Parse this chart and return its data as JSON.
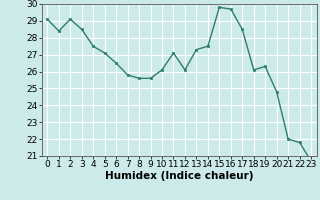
{
  "x": [
    0,
    1,
    2,
    3,
    4,
    5,
    6,
    7,
    8,
    9,
    10,
    11,
    12,
    13,
    14,
    15,
    16,
    17,
    18,
    19,
    20,
    21,
    22,
    23
  ],
  "y": [
    29.1,
    28.4,
    29.1,
    28.5,
    27.5,
    27.1,
    26.5,
    25.8,
    25.6,
    25.6,
    26.1,
    27.1,
    26.1,
    27.3,
    27.5,
    29.8,
    29.7,
    28.5,
    26.1,
    26.3,
    24.8,
    22.0,
    21.8,
    20.7
  ],
  "xlabel": "Humidex (Indice chaleur)",
  "ylim": [
    21,
    30
  ],
  "xlim": [
    -0.5,
    23.5
  ],
  "yticks": [
    21,
    22,
    23,
    24,
    25,
    26,
    27,
    28,
    29,
    30
  ],
  "xticks": [
    0,
    1,
    2,
    3,
    4,
    5,
    6,
    7,
    8,
    9,
    10,
    11,
    12,
    13,
    14,
    15,
    16,
    17,
    18,
    19,
    20,
    21,
    22,
    23
  ],
  "line_color": "#2e7d6e",
  "marker_color": "#2e7d6e",
  "bg_color": "#cdeaea",
  "grid_color": "#ffffff",
  "tick_fontsize": 6.5,
  "xlabel_fontsize": 7.5
}
